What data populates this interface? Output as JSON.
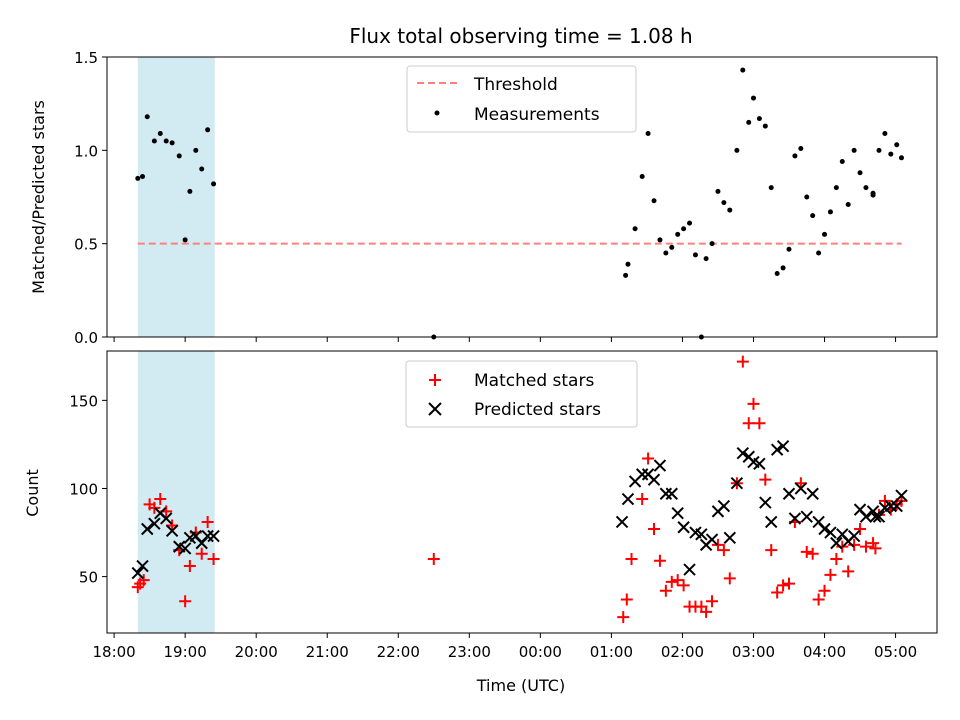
{
  "figure": {
    "title": "Flux total observing time = 1.08 h",
    "xlabel": "Time (UTC)",
    "x_ticks": [
      {
        "t": 0,
        "label": "18:00"
      },
      {
        "t": 60,
        "label": "19:00"
      },
      {
        "t": 120,
        "label": "20:00"
      },
      {
        "t": 180,
        "label": "21:00"
      },
      {
        "t": 240,
        "label": "22:00"
      },
      {
        "t": 300,
        "label": "23:00"
      },
      {
        "t": 360,
        "label": "00:00"
      },
      {
        "t": 420,
        "label": "01:00"
      },
      {
        "t": 480,
        "label": "02:00"
      },
      {
        "t": 540,
        "label": "03:00"
      },
      {
        "t": 600,
        "label": "04:00"
      },
      {
        "t": 660,
        "label": "05:00"
      }
    ],
    "xlim": [
      -6,
      695
    ],
    "shaded_span": {
      "start": 20,
      "end": 85,
      "color": "#add8e6"
    }
  },
  "chart_data": [
    {
      "type": "scatter",
      "ylabel": "Matched/Predicted stars",
      "ylim": [
        0,
        1.5
      ],
      "y_ticks": [
        "0.0",
        "0.5",
        "1.0",
        "1.5"
      ],
      "y_tick_values": [
        0,
        0.5,
        1.0,
        1.5
      ],
      "legend": {
        "placement": "upper-center",
        "entries": [
          "Threshold",
          "Measurements"
        ]
      },
      "threshold": {
        "name": "Threshold",
        "value": 0.5,
        "x_range": [
          20,
          665
        ],
        "color": "#ff7f7f"
      },
      "series": [
        {
          "name": "Measurements",
          "marker": "dot",
          "color": "#000000",
          "points": [
            [
              20,
              0.85
            ],
            [
              24,
              0.86
            ],
            [
              28,
              1.18
            ],
            [
              34,
              1.05
            ],
            [
              39,
              1.09
            ],
            [
              44,
              1.05
            ],
            [
              49,
              1.04
            ],
            [
              55,
              0.97
            ],
            [
              60,
              0.52
            ],
            [
              64,
              0.78
            ],
            [
              69,
              1.0
            ],
            [
              74,
              0.9
            ],
            [
              79,
              1.11
            ],
            [
              84,
              0.82
            ],
            [
              270,
              0.0
            ],
            [
              432,
              0.33
            ],
            [
              434,
              0.39
            ],
            [
              440,
              0.58
            ],
            [
              446,
              0.86
            ],
            [
              451,
              1.09
            ],
            [
              456,
              0.73
            ],
            [
              461,
              0.52
            ],
            [
              466,
              0.45
            ],
            [
              471,
              0.48
            ],
            [
              476,
              0.55
            ],
            [
              481,
              0.58
            ],
            [
              486,
              0.61
            ],
            [
              491,
              0.44
            ],
            [
              496,
              0.0
            ],
            [
              500,
              0.42
            ],
            [
              505,
              0.5
            ],
            [
              510,
              0.78
            ],
            [
              515,
              0.72
            ],
            [
              520,
              0.68
            ],
            [
              526,
              1.0
            ],
            [
              531,
              1.43
            ],
            [
              536,
              1.15
            ],
            [
              540,
              1.28
            ],
            [
              545,
              1.17
            ],
            [
              550,
              1.13
            ],
            [
              555,
              0.8
            ],
            [
              560,
              0.34
            ],
            [
              565,
              0.37
            ],
            [
              570,
              0.47
            ],
            [
              575,
              0.97
            ],
            [
              580,
              1.01
            ],
            [
              585,
              0.75
            ],
            [
              590,
              0.65
            ],
            [
              595,
              0.45
            ],
            [
              600,
              0.55
            ],
            [
              605,
              0.67
            ],
            [
              610,
              0.8
            ],
            [
              615,
              0.94
            ],
            [
              620,
              0.71
            ],
            [
              625,
              1.0
            ],
            [
              630,
              0.88
            ],
            [
              635,
              0.8
            ],
            [
              641,
              0.77
            ],
            [
              641,
              0.76
            ],
            [
              646,
              1.0
            ],
            [
              651,
              1.09
            ],
            [
              656,
              0.98
            ],
            [
              661,
              1.03
            ],
            [
              665,
              0.96
            ]
          ]
        }
      ]
    },
    {
      "type": "scatter",
      "ylabel": "Count",
      "ylim": [
        18,
        178
      ],
      "y_ticks": [
        "50",
        "100",
        "150"
      ],
      "y_tick_values": [
        50,
        100,
        150
      ],
      "legend": {
        "placement": "upper-center",
        "entries": [
          "Matched stars",
          "Predicted stars"
        ]
      },
      "series": [
        {
          "name": "Matched stars",
          "marker": "plus",
          "color": "#ff0000",
          "points": [
            [
              20,
              44
            ],
            [
              22,
              46
            ],
            [
              25,
              48
            ],
            [
              30,
              91
            ],
            [
              34,
              89
            ],
            [
              39,
              94
            ],
            [
              44,
              87
            ],
            [
              49,
              79
            ],
            [
              55,
              65
            ],
            [
              60,
              36
            ],
            [
              64,
              56
            ],
            [
              69,
              75
            ],
            [
              74,
              63
            ],
            [
              79,
              81
            ],
            [
              84,
              60
            ],
            [
              270,
              60
            ],
            [
              430,
              27
            ],
            [
              433,
              37
            ],
            [
              437,
              60
            ],
            [
              446,
              94
            ],
            [
              451,
              117
            ],
            [
              456,
              77
            ],
            [
              461,
              59
            ],
            [
              466,
              42
            ],
            [
              471,
              47
            ],
            [
              476,
              48
            ],
            [
              481,
              45
            ],
            [
              486,
              33
            ],
            [
              491,
              33
            ],
            [
              496,
              33
            ],
            [
              500,
              30
            ],
            [
              505,
              36
            ],
            [
              510,
              68
            ],
            [
              515,
              65
            ],
            [
              520,
              49
            ],
            [
              526,
              103
            ],
            [
              531,
              172
            ],
            [
              536,
              137
            ],
            [
              540,
              148
            ],
            [
              545,
              137
            ],
            [
              550,
              105
            ],
            [
              555,
              65
            ],
            [
              560,
              41
            ],
            [
              565,
              45
            ],
            [
              570,
              46
            ],
            [
              575,
              81
            ],
            [
              580,
              103
            ],
            [
              585,
              64
            ],
            [
              590,
              63
            ],
            [
              595,
              37
            ],
            [
              600,
              42
            ],
            [
              605,
              51
            ],
            [
              610,
              60
            ],
            [
              615,
              67
            ],
            [
              620,
              53
            ],
            [
              625,
              68
            ],
            [
              630,
              77
            ],
            [
              635,
              67
            ],
            [
              641,
              69
            ],
            [
              643,
              66
            ],
            [
              646,
              85
            ],
            [
              651,
              93
            ],
            [
              656,
              88
            ],
            [
              661,
              91
            ],
            [
              665,
              93
            ]
          ]
        },
        {
          "name": "Predicted stars",
          "marker": "x",
          "color": "#000000",
          "points": [
            [
              20,
              52
            ],
            [
              24,
              56
            ],
            [
              28,
              77
            ],
            [
              34,
              80
            ],
            [
              39,
              86
            ],
            [
              44,
              83
            ],
            [
              49,
              76
            ],
            [
              55,
              67
            ],
            [
              60,
              66
            ],
            [
              64,
              72
            ],
            [
              69,
              73
            ],
            [
              74,
              69
            ],
            [
              79,
              73
            ],
            [
              84,
              73
            ],
            [
              429,
              81
            ],
            [
              434,
              94
            ],
            [
              440,
              104
            ],
            [
              446,
              108
            ],
            [
              451,
              108
            ],
            [
              456,
              105
            ],
            [
              461,
              113
            ],
            [
              466,
              97
            ],
            [
              471,
              97
            ],
            [
              476,
              86
            ],
            [
              481,
              78
            ],
            [
              486,
              54
            ],
            [
              491,
              75
            ],
            [
              496,
              74
            ],
            [
              500,
              68
            ],
            [
              505,
              71
            ],
            [
              510,
              87
            ],
            [
              515,
              90
            ],
            [
              520,
              72
            ],
            [
              526,
              103
            ],
            [
              531,
              120
            ],
            [
              536,
              118
            ],
            [
              540,
              115
            ],
            [
              545,
              114
            ],
            [
              550,
              92
            ],
            [
              555,
              81
            ],
            [
              560,
              122
            ],
            [
              565,
              124
            ],
            [
              570,
              97
            ],
            [
              575,
              83
            ],
            [
              580,
              100
            ],
            [
              585,
              84
            ],
            [
              590,
              97
            ],
            [
              595,
              81
            ],
            [
              600,
              77
            ],
            [
              605,
              75
            ],
            [
              610,
              69
            ],
            [
              615,
              74
            ],
            [
              620,
              70
            ],
            [
              625,
              73
            ],
            [
              630,
              88
            ],
            [
              635,
              84
            ],
            [
              641,
              87
            ],
            [
              643,
              84
            ],
            [
              646,
              84
            ],
            [
              651,
              89
            ],
            [
              656,
              90
            ],
            [
              661,
              90
            ],
            [
              665,
              96
            ]
          ]
        }
      ]
    }
  ]
}
